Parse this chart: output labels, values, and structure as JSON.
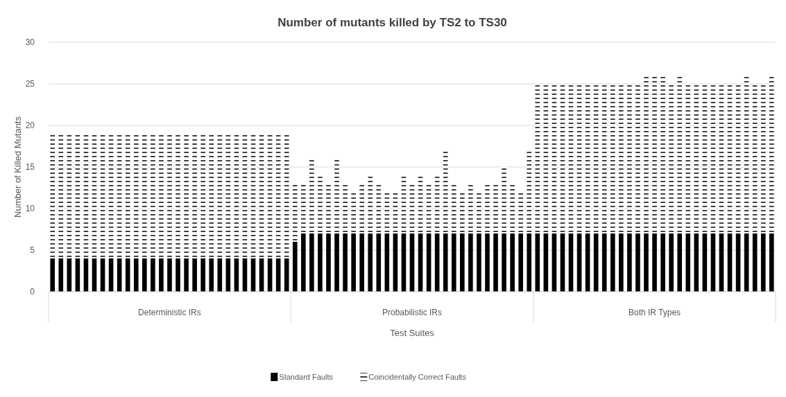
{
  "chart_data": {
    "type": "bar",
    "title": "Number of mutants killed by TS2 to TS30",
    "xlabel": "Test Suites",
    "ylabel": "Number of Killed Mutants",
    "annotations": [
      "Deterministic IRs",
      "Probabilistic IRs",
      "Both IR Types"
    ],
    "categories": [
      null,
      null,
      null,
      null,
      null,
      null,
      null,
      null,
      null,
      null,
      null,
      null,
      null,
      null,
      null,
      null,
      null,
      null,
      null,
      null,
      null,
      null,
      null,
      null,
      null,
      null,
      null,
      null,
      null,
      null,
      null,
      null,
      null,
      null,
      null,
      null,
      null,
      null,
      null,
      null,
      null,
      null,
      null,
      null,
      null,
      null,
      null,
      null,
      null,
      null,
      null,
      null,
      null,
      null,
      null,
      null,
      null,
      null,
      null,
      null,
      null,
      null,
      null,
      null,
      null,
      null,
      null,
      null,
      null,
      null,
      null,
      null,
      null,
      null,
      null,
      null,
      null,
      null,
      null,
      null,
      null,
      null,
      null,
      null,
      null,
      null,
      null
    ],
    "stacked": true,
    "series": [
      {
        "name": "Standard Faults",
        "color": "#000000",
        "values": [
          4,
          4,
          4,
          4,
          4,
          4,
          4,
          4,
          4,
          4,
          4,
          4,
          4,
          4,
          4,
          4,
          4,
          4,
          4,
          4,
          4,
          4,
          4,
          4,
          4,
          4,
          4,
          4,
          4,
          6,
          7,
          7,
          7,
          7,
          7,
          7,
          7,
          7,
          7,
          7,
          7,
          7,
          7,
          7,
          7,
          7,
          7,
          7,
          7,
          7,
          7,
          7,
          7,
          7,
          7,
          7,
          7,
          7,
          7,
          7,
          7,
          7,
          7,
          7,
          7,
          7,
          7,
          7,
          7,
          7,
          7,
          7,
          7,
          7,
          7,
          7,
          7,
          7,
          7,
          7,
          7,
          7,
          7,
          7,
          7,
          7,
          7
        ]
      },
      {
        "name": "Coincidentally Correct Faults",
        "color": "#000000",
        "values": [
          15,
          15,
          15,
          15,
          15,
          15,
          15,
          15,
          15,
          15,
          15,
          15,
          15,
          15,
          15,
          15,
          15,
          15,
          15,
          15,
          15,
          15,
          15,
          15,
          15,
          15,
          15,
          15,
          15,
          7,
          6,
          9,
          7,
          6,
          9,
          6,
          5,
          6,
          7,
          6,
          5,
          5,
          7,
          6,
          7,
          6,
          7,
          10,
          6,
          5,
          6,
          5,
          6,
          6,
          8,
          6,
          5,
          10,
          18,
          18,
          18,
          18,
          18,
          18,
          18,
          18,
          18,
          18,
          18,
          18,
          18,
          19,
          19,
          19,
          18,
          19,
          18,
          18,
          18,
          18,
          18,
          18,
          18,
          19,
          18,
          18,
          19
        ]
      }
    ],
    "ylim": [
      0,
      30
    ],
    "yticks": [
      0,
      5,
      10,
      15,
      20,
      25,
      30
    ],
    "grid": "y",
    "legend": "bottom"
  }
}
